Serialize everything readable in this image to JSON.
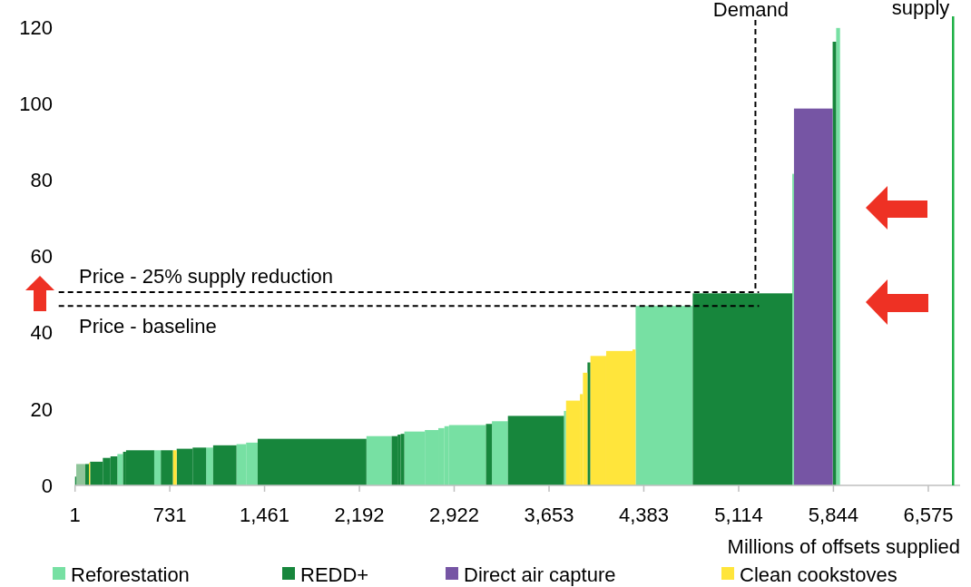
{
  "chart_data": {
    "type": "histogram",
    "xlabel": "Millions of offsets supplied",
    "bins": [
      1,
      10,
      80,
      108,
      117,
      215,
      274,
      327,
      371,
      394,
      611,
      662,
      756,
      784,
      907,
      1011,
      1065,
      1245,
      1319,
      1408,
      2246,
      2440,
      2486,
      2510,
      2538,
      2696,
      2800,
      2847,
      2882,
      3167,
      3213,
      3336,
      3768,
      3784,
      3891,
      3914,
      3949,
      3972,
      4093,
      4296,
      4320,
      4760,
      5527,
      5540,
      5838,
      5865,
      5895
    ],
    "series": [
      {
        "name": "Reforestation",
        "color": "#77e0a3",
        "values": [
          null,
          null,
          null,
          null,
          null,
          null,
          null,
          8.2,
          null,
          null,
          9.2,
          null,
          null,
          null,
          null,
          9.9,
          null,
          10.8,
          11.2,
          null,
          12.9,
          null,
          null,
          null,
          14.1,
          14.5,
          15.0,
          15.5,
          15.8,
          null,
          16.8,
          null,
          19.5,
          null,
          null,
          null,
          null,
          null,
          null,
          null,
          47.0,
          null,
          81.6,
          null,
          null,
          119.8
        ]
      },
      {
        "name": "REDD+",
        "color": "#17863c",
        "values": [
          2.3,
          null,
          5.6,
          null,
          6.2,
          7.2,
          7.6,
          null,
          8.8,
          9.2,
          null,
          9.2,
          null,
          9.6,
          9.9,
          null,
          10.5,
          null,
          null,
          12.2,
          null,
          12.9,
          13.3,
          13.5,
          null,
          null,
          null,
          null,
          null,
          16.1,
          null,
          18.2,
          null,
          null,
          null,
          null,
          32.2,
          null,
          null,
          null,
          null,
          50.3,
          null,
          null,
          116.2,
          null
        ]
      },
      {
        "name": "Direct air capture",
        "color": "#7655a4",
        "values": [
          null,
          null,
          null,
          null,
          null,
          null,
          null,
          null,
          null,
          null,
          null,
          null,
          null,
          null,
          null,
          null,
          null,
          null,
          null,
          null,
          null,
          null,
          null,
          null,
          null,
          null,
          null,
          null,
          null,
          null,
          null,
          null,
          null,
          null,
          null,
          null,
          null,
          null,
          null,
          null,
          null,
          null,
          null,
          98.7,
          null,
          null
        ]
      },
      {
        "name": "Clean cookstoves",
        "color": "#ffe53b",
        "values": [
          null,
          null,
          null,
          5.9,
          null,
          null,
          null,
          null,
          null,
          null,
          null,
          null,
          9.2,
          null,
          null,
          null,
          null,
          null,
          null,
          null,
          null,
          null,
          null,
          null,
          null,
          null,
          null,
          null,
          null,
          null,
          null,
          null,
          null,
          22.2,
          23.9,
          29.5,
          null,
          33.9,
          35.2,
          35.6,
          null,
          null,
          null,
          null,
          null,
          null
        ]
      },
      {
        "color": "#8fc59a",
        "values": [
          null,
          5.6,
          null,
          null,
          null,
          null,
          null,
          null,
          null,
          null,
          null,
          null,
          null,
          null,
          null,
          null,
          null,
          null,
          null,
          null,
          null,
          null,
          null,
          null,
          null,
          null,
          null,
          null,
          null,
          null,
          null,
          null,
          null,
          null,
          null,
          null,
          null,
          null,
          null,
          null,
          null,
          null,
          null,
          null,
          null,
          null
        ]
      }
    ],
    "xlim": [
      1,
      6820
    ],
    "xticks": [
      1,
      731,
      {
        "value": 1461,
        "label": "1,461"
      },
      {
        "value": 2192,
        "label": "2,192"
      },
      {
        "value": 2922,
        "label": "2,922"
      },
      {
        "value": 3653,
        "label": "3,653"
      },
      {
        "value": 4383,
        "label": "4,383"
      },
      {
        "value": 5114,
        "label": "5,114"
      },
      {
        "value": 5844,
        "label": "5,844"
      },
      {
        "value": 6575,
        "label": "6,575"
      }
    ],
    "ylim": [
      0,
      120
    ],
    "yticks": [
      0,
      20,
      40,
      60,
      80,
      100,
      120
    ],
    "ref_lines": [
      {
        "axis": "x",
        "value": 5243,
        "label": "Demand",
        "color": "#000000",
        "line_style": "dashed"
      },
      {
        "axis": "x",
        "value": 6766,
        "label": "supply",
        "color": "#1db045",
        "line_style": "solid"
      },
      {
        "axis": "y",
        "value": 50.6,
        "label": "Price - 25% supply reduction",
        "color": "#000000",
        "line_style": "dashed"
      },
      {
        "axis": "y",
        "value": 47,
        "label": "Price - baseline",
        "color": "#000000",
        "line_style": "dashed"
      }
    ],
    "legend": "bottom"
  }
}
